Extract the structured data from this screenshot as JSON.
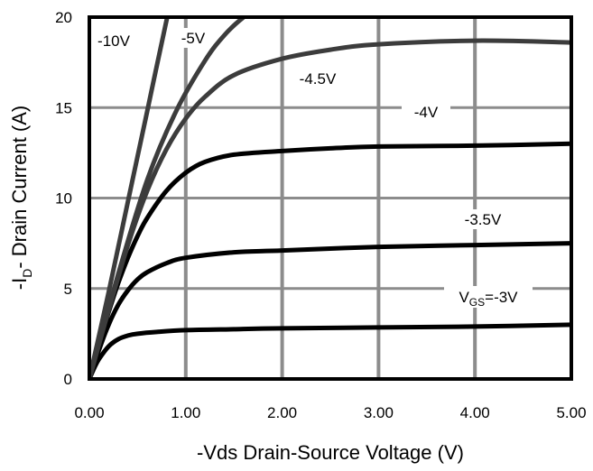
{
  "chart_data": {
    "type": "line",
    "title": "",
    "xlabel": "-Vds Drain-Source Voltage (V)",
    "ylabel_parts": {
      "prefix": "-I",
      "subscript": "D",
      "suffix": "- Drain Current (A)"
    },
    "xlim": [
      0,
      5
    ],
    "ylim": [
      0,
      20
    ],
    "x_ticks": [
      "0.00",
      "1.00",
      "2.00",
      "3.00",
      "4.00",
      "5.00"
    ],
    "y_ticks": [
      "0",
      "5",
      "10",
      "15",
      "20"
    ],
    "x_tick_values": [
      0,
      1,
      2,
      3,
      4,
      5
    ],
    "y_tick_values": [
      0,
      5,
      10,
      15,
      20
    ],
    "grid": true,
    "legend": "none",
    "colors": {
      "grid": "#8c8c8c",
      "frame": "#000000",
      "curve_gray": "#3c3c3c",
      "curve_black": "#000000"
    },
    "series": [
      {
        "label_parts": {
          "prefix": "V",
          "subscript": "GS",
          "suffix": "=-3V"
        },
        "color": "#000000",
        "x": [
          0,
          0.05,
          0.1,
          0.2,
          0.3,
          0.4,
          0.5,
          0.7,
          1.0,
          1.5,
          2.0,
          3.0,
          4.0,
          5.0
        ],
        "y": [
          0,
          0.6,
          1.1,
          1.8,
          2.2,
          2.4,
          2.5,
          2.6,
          2.7,
          2.75,
          2.8,
          2.85,
          2.9,
          3.0
        ]
      },
      {
        "label": "-3.5V",
        "color": "#000000",
        "x": [
          0,
          0.1,
          0.2,
          0.3,
          0.4,
          0.5,
          0.6,
          0.8,
          1.0,
          1.5,
          2.0,
          3.0,
          4.0,
          5.0
        ],
        "y": [
          0,
          1.6,
          3.0,
          4.1,
          4.9,
          5.5,
          5.9,
          6.4,
          6.7,
          7.0,
          7.1,
          7.3,
          7.4,
          7.5
        ]
      },
      {
        "label": "-4V",
        "color": "#000000",
        "x": [
          0,
          0.1,
          0.2,
          0.3,
          0.4,
          0.5,
          0.6,
          0.8,
          1.0,
          1.2,
          1.5,
          2.0,
          2.5,
          3.0,
          4.0,
          5.0
        ],
        "y": [
          0,
          1.9,
          3.7,
          5.3,
          6.7,
          7.9,
          8.9,
          10.4,
          11.4,
          12.0,
          12.4,
          12.6,
          12.75,
          12.85,
          12.9,
          13.0
        ]
      },
      {
        "label": "-4.5V",
        "color": "#3c3c3c",
        "x": [
          0,
          0.2,
          0.4,
          0.6,
          0.8,
          1.0,
          1.2,
          1.5,
          2.0,
          2.5,
          3.0,
          4.0,
          5.0
        ],
        "y": [
          0,
          3.8,
          7.4,
          10.4,
          12.7,
          14.4,
          15.6,
          16.8,
          17.7,
          18.2,
          18.5,
          18.7,
          18.6
        ]
      },
      {
        "label": "-5V",
        "color": "#3c3c3c",
        "x": [
          0,
          0.3,
          0.6,
          0.9,
          1.2,
          1.4,
          1.6,
          1.7
        ],
        "y": [
          0,
          5.8,
          11.0,
          14.8,
          17.6,
          19.0,
          20.0,
          20.3
        ]
      },
      {
        "label": "-10V",
        "color": "#3c3c3c",
        "x": [
          0,
          0.2,
          0.4,
          0.6,
          0.8,
          0.85
        ],
        "y": [
          0,
          4.8,
          9.8,
          14.8,
          19.8,
          20.6
        ]
      }
    ]
  }
}
